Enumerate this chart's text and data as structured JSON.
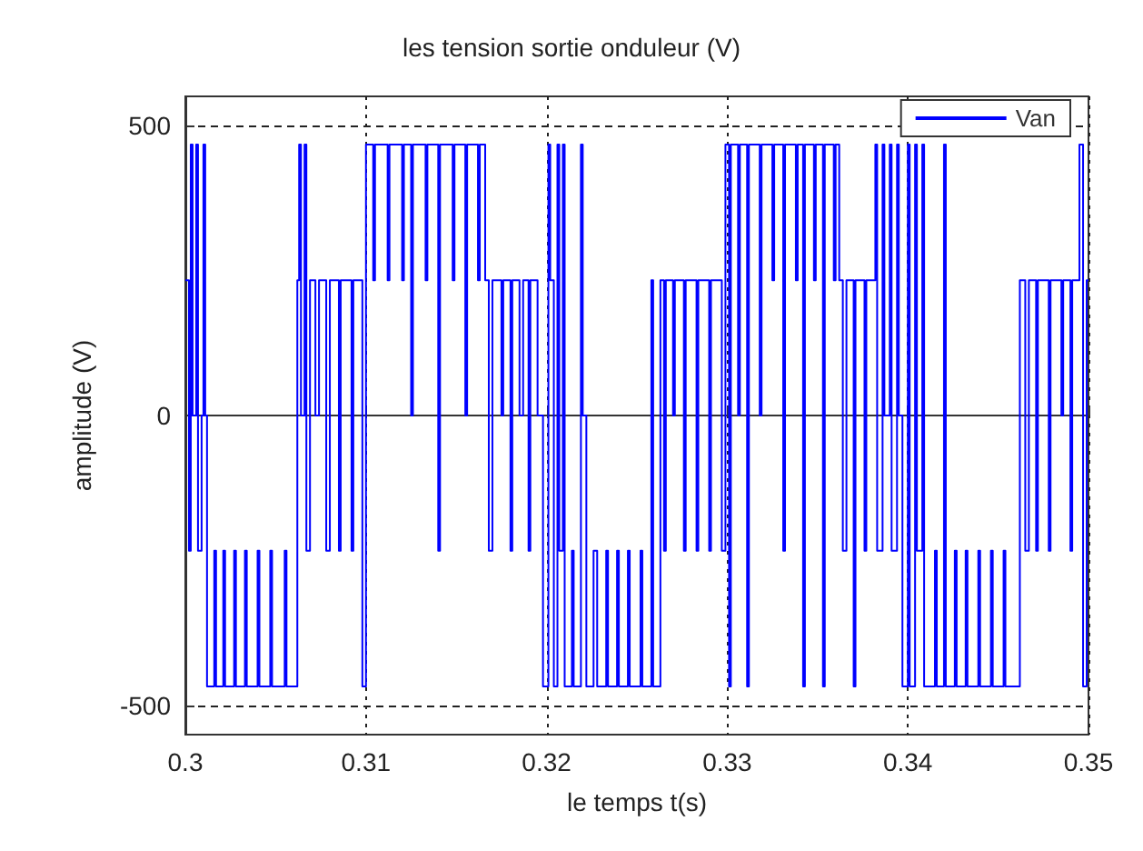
{
  "chart_data": {
    "type": "step",
    "title": "les tension sortie onduleur (V)",
    "xlabel": "le temps t(s)",
    "ylabel": "amplitude (V)",
    "xlim": [
      0.3,
      0.35
    ],
    "xticks": [
      0.3,
      0.31,
      0.32,
      0.33,
      0.34,
      0.35
    ],
    "ylim": [
      -550,
      550
    ],
    "yticks": [
      -500,
      0,
      500
    ],
    "grid": true,
    "legend": "top right",
    "marker": "none",
    "line_style": "solid",
    "series": [
      {
        "name": "Van",
        "color": "#0000ff",
        "x": [
          0.3,
          0.3002,
          0.3003,
          0.3004,
          0.3006,
          0.3007,
          0.3009,
          0.301,
          0.3011,
          0.3012,
          0.3016,
          0.3017,
          0.3021,
          0.3022,
          0.3027,
          0.3028,
          0.3033,
          0.3034,
          0.304,
          0.3041,
          0.3047,
          0.3048,
          0.3055,
          0.3056,
          0.3062,
          0.3063,
          0.3064,
          0.3066,
          0.3067,
          0.3069,
          0.3072,
          0.3074,
          0.3078,
          0.308,
          0.3085,
          0.3086,
          0.3092,
          0.3093,
          0.3098,
          0.31,
          0.3104,
          0.3105,
          0.3112,
          0.3113,
          0.312,
          0.3121,
          0.3125,
          0.3126,
          0.3133,
          0.3134,
          0.314,
          0.3141,
          0.3148,
          0.3149,
          0.3155,
          0.3156,
          0.3162,
          0.3163,
          0.3166,
          0.3168,
          0.317,
          0.3175,
          0.3176,
          0.318,
          0.3181,
          0.3185,
          0.3187,
          0.319,
          0.3191,
          0.3195,
          0.3198,
          0.3201,
          0.3202,
          0.3204,
          0.3206,
          0.3207,
          0.3209,
          0.321,
          0.3214,
          0.3215,
          0.3219,
          0.322,
          0.3222,
          0.3226,
          0.3228,
          0.3233,
          0.3234,
          0.3239,
          0.324,
          0.3245,
          0.3246,
          0.3252,
          0.3253,
          0.3258,
          0.3259,
          0.3263,
          0.3265,
          0.3266,
          0.327,
          0.3271,
          0.3276,
          0.3277,
          0.3283,
          0.3284,
          0.329,
          0.3291,
          0.3297,
          0.3299,
          0.3301,
          0.3302,
          0.3306,
          0.3307,
          0.3311,
          0.3312,
          0.3318,
          0.3319,
          0.3325,
          0.3326,
          0.3331,
          0.3332,
          0.3338,
          0.3339,
          0.3342,
          0.3343,
          0.3348,
          0.3349,
          0.3353,
          0.3354,
          0.3359,
          0.336,
          0.3362,
          0.3364,
          0.3366,
          0.337,
          0.3371,
          0.3376,
          0.3377,
          0.3382,
          0.3383,
          0.3386,
          0.3387,
          0.339,
          0.3391,
          0.3394,
          0.3395,
          0.3397,
          0.34,
          0.3401,
          0.3404,
          0.3405,
          0.3408,
          0.3409,
          0.3415,
          0.3416,
          0.342,
          0.3421,
          0.3426,
          0.3427,
          0.3432,
          0.3433,
          0.3439,
          0.344,
          0.3446,
          0.3447,
          0.3453,
          0.3454,
          0.3462,
          0.3465,
          0.3467,
          0.3471,
          0.3472,
          0.3478,
          0.3479,
          0.3485,
          0.3486,
          0.349,
          0.3491,
          0.3495,
          0.3497,
          0.3499,
          0.35
        ],
        "values": [
          233,
          -233,
          467,
          0,
          467,
          -233,
          0,
          467,
          0,
          -467,
          -233,
          -467,
          -233,
          -467,
          -233,
          -467,
          -233,
          -467,
          -233,
          -467,
          -233,
          -467,
          -233,
          -467,
          233,
          467,
          0,
          467,
          -233,
          233,
          0,
          233,
          -233,
          233,
          -233,
          233,
          -233,
          233,
          -467,
          467,
          233,
          467,
          233,
          467,
          233,
          467,
          0,
          467,
          233,
          467,
          -233,
          467,
          233,
          467,
          0,
          467,
          233,
          467,
          233,
          -233,
          233,
          0,
          233,
          -233,
          233,
          0,
          233,
          -233,
          233,
          0,
          -467,
          467,
          233,
          -467,
          467,
          -233,
          467,
          -467,
          -233,
          -467,
          467,
          0,
          -467,
          -233,
          -467,
          -233,
          -467,
          -233,
          -467,
          -233,
          -467,
          -233,
          -467,
          233,
          -467,
          233,
          -233,
          233,
          0,
          233,
          -233,
          233,
          -233,
          233,
          -233,
          233,
          -233,
          467,
          -467,
          467,
          0,
          467,
          -467,
          467,
          0,
          467,
          233,
          467,
          -233,
          467,
          233,
          467,
          -467,
          467,
          233,
          467,
          -467,
          467,
          233,
          467,
          233,
          -233,
          233,
          -467,
          233,
          -233,
          233,
          467,
          -233,
          467,
          0,
          467,
          -233,
          467,
          0,
          -467,
          467,
          -467,
          467,
          -233,
          467,
          -467,
          -233,
          -467,
          467,
          -467,
          -233,
          -467,
          -233,
          -467,
          -233,
          -467,
          -233,
          -467,
          -233,
          -467,
          233,
          -233,
          233,
          -233,
          233,
          -233,
          233,
          0,
          233,
          -233,
          233,
          467,
          -467,
          233,
          233
        ]
      }
    ]
  }
}
